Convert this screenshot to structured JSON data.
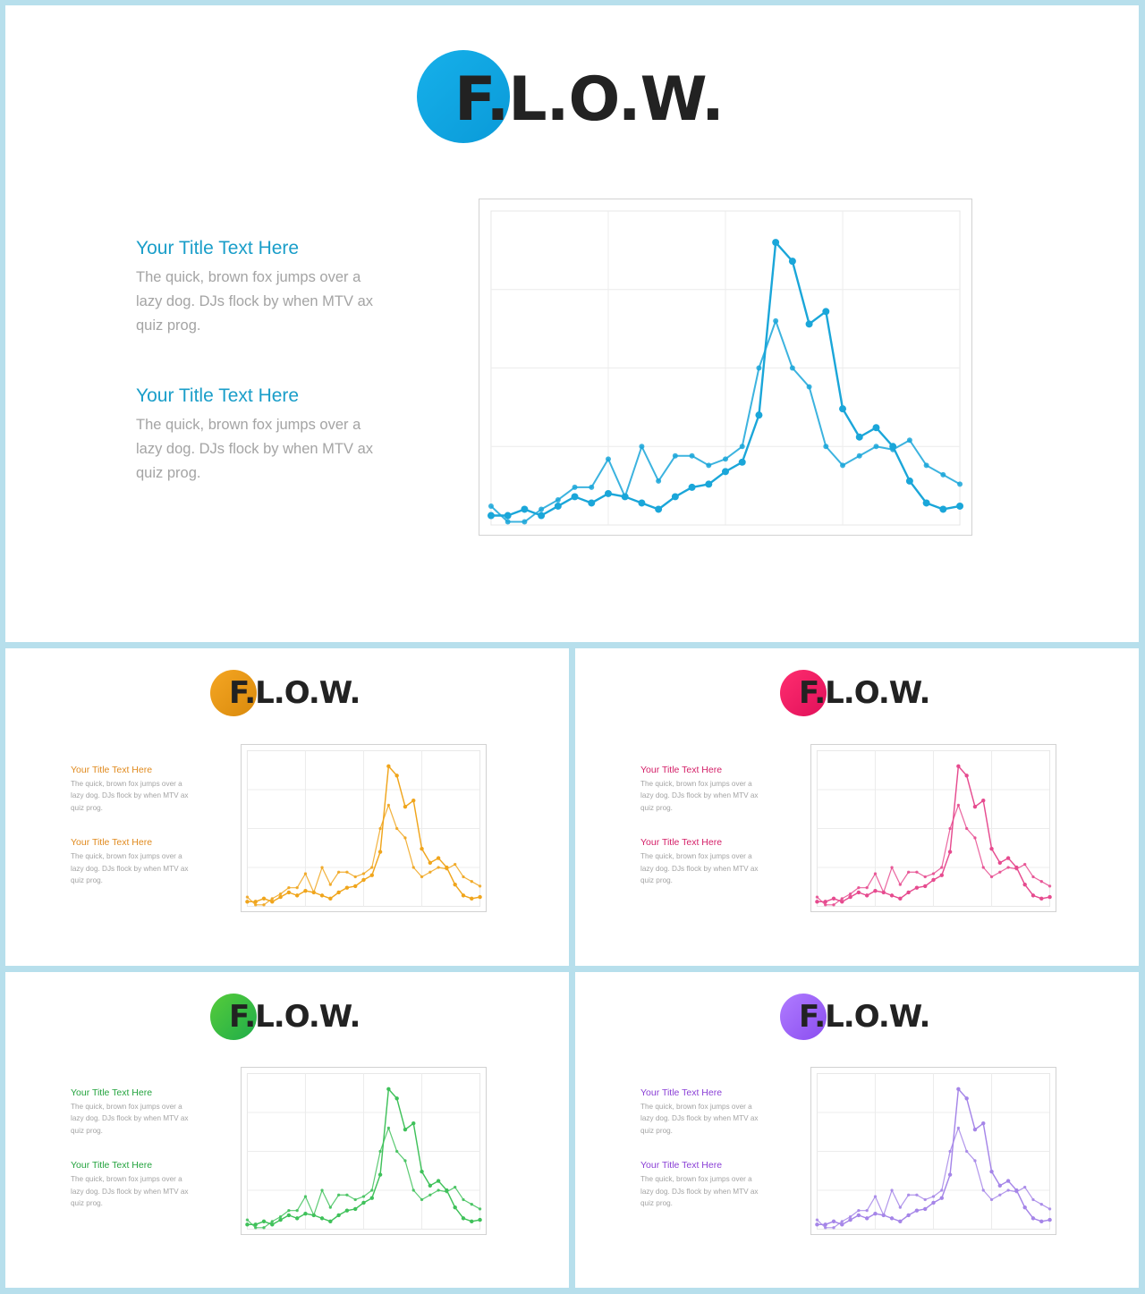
{
  "logo_text": "F.L.O.W.",
  "text_blocks": [
    {
      "title": "Your Title Text Here",
      "body": "The quick, brown fox jumps over a lazy dog. DJs flock by when MTV ax quiz prog."
    },
    {
      "title": "Your Title Text Here",
      "body": "The quick, brown fox jumps over a lazy dog. DJs flock by when MTV ax quiz prog."
    }
  ],
  "variants": [
    {
      "name": "blue",
      "accent": "#1aa6d9",
      "title_color": "#1a9ec9",
      "circle_colors": [
        "#16b0ea",
        "#0a9ad8"
      ]
    },
    {
      "name": "orange",
      "accent": "#f0a51c",
      "title_color": "#e08a1e",
      "circle_colors": [
        "#f5a623",
        "#d98a0c"
      ]
    },
    {
      "name": "pink",
      "accent": "#e64b8f",
      "title_color": "#d42068",
      "circle_colors": [
        "#ff2d6f",
        "#e0105a"
      ]
    },
    {
      "name": "green",
      "accent": "#3fc15a",
      "title_color": "#23a33e",
      "circle_colors": [
        "#56cc3a",
        "#1fad4a"
      ]
    },
    {
      "name": "purple",
      "accent": "#a585e8",
      "title_color": "#8a3fd6",
      "circle_colors": [
        "#b07cff",
        "#8a4df0"
      ]
    }
  ],
  "chart_data": {
    "type": "line",
    "grid": true,
    "ylim": [
      0,
      100
    ],
    "x": [
      1,
      2,
      3,
      4,
      5,
      6,
      7,
      8,
      9,
      10,
      11,
      12,
      13,
      14,
      15,
      16,
      17,
      18,
      19,
      20,
      21,
      22,
      23,
      24,
      25,
      26,
      27,
      28,
      29
    ],
    "series": [
      {
        "style": "small-markers",
        "values": [
          6,
          1,
          1,
          5,
          8,
          12,
          12,
          21,
          9,
          25,
          14,
          22,
          22,
          19,
          21,
          25,
          50,
          65,
          50,
          44,
          25,
          19,
          22,
          25,
          24,
          27,
          19,
          16,
          13
        ]
      },
      {
        "style": "large-markers",
        "values": [
          3,
          3,
          5,
          3,
          6,
          9,
          7,
          10,
          9,
          7,
          5,
          9,
          12,
          13,
          17,
          20,
          35,
          90,
          84,
          64,
          68,
          37,
          28,
          31,
          25,
          14,
          7,
          5,
          6
        ]
      }
    ]
  }
}
